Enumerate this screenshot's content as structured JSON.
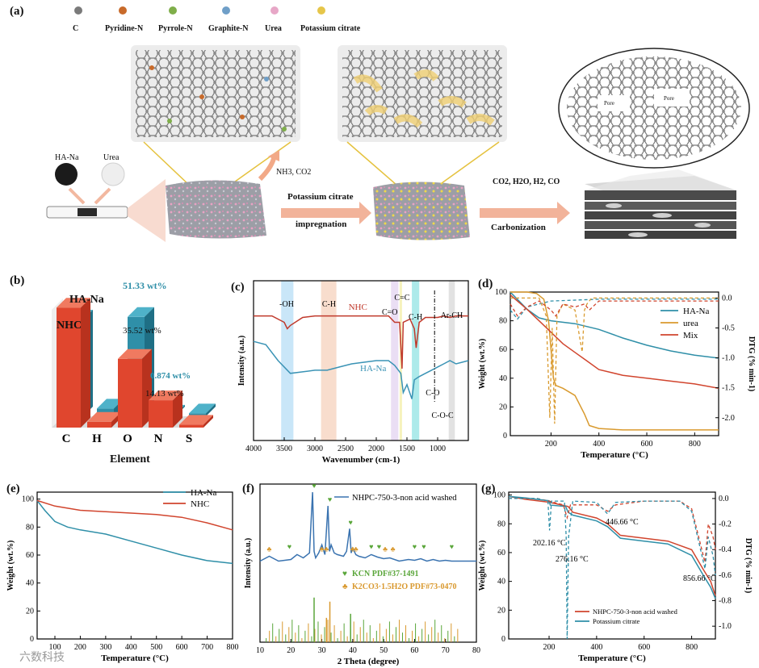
{
  "panel_a": {
    "label": "(a)",
    "legend": [
      {
        "name": "C",
        "color": "#707070"
      },
      {
        "name": "Pyridine-N",
        "color": "#c86a2a"
      },
      {
        "name": "Pyrrole-N",
        "color": "#7fae4a"
      },
      {
        "name": "Graphite-N",
        "color": "#6f9fc8"
      },
      {
        "name": "Urea",
        "color": "#e7a7c7"
      },
      {
        "name": "Potassium citrate",
        "color": "#e6c64a"
      }
    ],
    "haNa": "HA-Na",
    "urea": "Urea",
    "gas1": "NH3, CO2",
    "step1_line1": "Potassium citrate",
    "step1_line2": "impregnation",
    "gas2": "CO2, H2O, H2, CO",
    "step2": "Carbonization",
    "pore1": "Pore",
    "pore2": "Pore"
  },
  "panel_b": {
    "label": "(b)",
    "xlabel": "Element",
    "series_haNa": "HA-Na",
    "series_nhc": "NHC",
    "annot_o_hana": "51.33 wt%",
    "annot_o_nhc": "35.52 wt%",
    "annot_n_hana": "0.874 wt%",
    "annot_n_nhc": "14.13 wt%"
  },
  "panel_c": {
    "label": "(c)"
  },
  "panel_d": {
    "label": "(d)"
  },
  "panel_e": {
    "label": "(e)"
  },
  "panel_f": {
    "label": "(f)"
  },
  "panel_g": {
    "label": "(g)"
  },
  "watermark": "六数科技",
  "chart_data": [
    {
      "id": "b",
      "type": "bar",
      "title": "",
      "xlabel": "Element",
      "ylabel": "",
      "categories": [
        "C",
        "H",
        "O",
        "N",
        "S"
      ],
      "series": [
        {
          "name": "NHC",
          "color": "#e0462e",
          "values": [
            62,
            3,
            35.52,
            14.13,
            1.5
          ]
        },
        {
          "name": "HA-Na",
          "color": "#2f8fa8",
          "values": [
            50,
            4,
            51.33,
            0.874,
            1.5
          ]
        }
      ]
    },
    {
      "id": "c",
      "type": "line",
      "xlabel": "Wavenumber (cm-1)",
      "ylabel": "Intensity (a.u.)",
      "xlim": [
        4000,
        500
      ],
      "xticks": [
        4000,
        3500,
        3000,
        2500,
        2000,
        1500,
        1000
      ],
      "bands": [
        {
          "label": "-OH",
          "range": [
            3550,
            3350
          ],
          "color": "#bfe2f7"
        },
        {
          "label": "C-H",
          "range": [
            2900,
            2650
          ],
          "color": "#f7d7c4"
        },
        {
          "label": "C=O",
          "range": [
            1760,
            1640
          ],
          "color": "#e6d8f2"
        },
        {
          "label": "C=C",
          "range": [
            1620,
            1580
          ],
          "color": "#f5f0b0"
        },
        {
          "label": "C-H",
          "range": [
            1420,
            1300
          ],
          "color": "#9fe6e6"
        },
        {
          "label": "Ar-CH",
          "range": [
            820,
            720
          ],
          "color": "#dddddd"
        }
      ],
      "annotations": [
        "C-O",
        "C-O-C"
      ],
      "series": [
        {
          "name": "NHC",
          "color": "#c0392b",
          "x": [
            4000,
            3700,
            3500,
            3450,
            3400,
            3200,
            3000,
            2800,
            2400,
            2000,
            1800,
            1700,
            1620,
            1580,
            1560,
            1450,
            1380,
            1350,
            1300,
            1200,
            1100,
            1000,
            900,
            800,
            700,
            500
          ],
          "y": [
            0.78,
            0.78,
            0.74,
            0.7,
            0.72,
            0.77,
            0.78,
            0.78,
            0.78,
            0.78,
            0.78,
            0.74,
            0.74,
            0.45,
            0.74,
            0.76,
            0.7,
            0.58,
            0.74,
            0.77,
            0.77,
            0.77,
            0.78,
            0.77,
            0.78,
            0.78
          ]
        },
        {
          "name": "HA-Na",
          "color": "#3a93b5",
          "x": [
            4000,
            3800,
            3600,
            3400,
            3200,
            3000,
            2800,
            2600,
            2400,
            2200,
            2000,
            1800,
            1700,
            1600,
            1560,
            1500,
            1420,
            1380,
            1300,
            1200,
            1100,
            1000,
            900,
            800,
            700,
            500
          ],
          "y": [
            0.62,
            0.6,
            0.5,
            0.42,
            0.43,
            0.44,
            0.44,
            0.46,
            0.48,
            0.49,
            0.5,
            0.5,
            0.47,
            0.42,
            0.3,
            0.35,
            0.26,
            0.38,
            0.4,
            0.42,
            0.44,
            0.46,
            0.48,
            0.5,
            0.48,
            0.5
          ]
        }
      ]
    },
    {
      "id": "d",
      "type": "line",
      "xlabel": "Temperature (°C)",
      "ylabel": "Weight (wt.%)",
      "y2label": "DTG (% min-1)",
      "xlim": [
        30,
        900
      ],
      "ylim": [
        0,
        100
      ],
      "y2lim": [
        -2.3,
        0.1
      ],
      "xticks": [
        200,
        400,
        600,
        800
      ],
      "yticks": [
        0,
        20,
        40,
        60,
        80,
        100
      ],
      "y2ticks": [
        0.0,
        -0.5,
        -1.0,
        -1.5,
        -2.0
      ],
      "series": [
        {
          "name": "HA-Na",
          "color": "#2f8fa8",
          "x": [
            30,
            100,
            150,
            200,
            300,
            400,
            500,
            600,
            700,
            800,
            900
          ],
          "y": [
            100,
            88,
            82,
            80,
            78,
            74,
            68,
            63,
            59,
            56,
            54
          ]
        },
        {
          "name": "urea",
          "color": "#d99a2e",
          "x": [
            30,
            100,
            140,
            170,
            190,
            200,
            210,
            220,
            250,
            300,
            340,
            360,
            400,
            500,
            900
          ],
          "y": [
            100,
            100,
            99,
            95,
            80,
            60,
            40,
            35,
            33,
            28,
            15,
            7,
            5,
            4,
            4
          ]
        },
        {
          "name": "Mix",
          "color": "#d1452e",
          "x": [
            30,
            100,
            150,
            200,
            250,
            300,
            350,
            400,
            500,
            600,
            700,
            800,
            900
          ],
          "y": [
            98,
            88,
            80,
            72,
            64,
            58,
            52,
            46,
            42,
            40,
            38,
            36,
            33
          ]
        }
      ],
      "dtg_series": [
        {
          "name": "HA-Na DTG",
          "color": "#2f8fa8",
          "x": [
            30,
            60,
            100,
            200,
            400,
            900
          ],
          "y": [
            -0.2,
            -0.35,
            -0.15,
            -0.05,
            -0.02,
            -0.02
          ]
        },
        {
          "name": "urea DTG",
          "color": "#d99a2e",
          "x": [
            30,
            150,
            180,
            195,
            205,
            215,
            225,
            250,
            300,
            330,
            340,
            350,
            370,
            400,
            900
          ],
          "y": [
            0,
            0,
            -0.3,
            -2.0,
            -0.5,
            -2.1,
            -0.3,
            -0.1,
            -0.2,
            -0.9,
            -0.2,
            -0.1,
            0,
            0,
            0
          ]
        },
        {
          "name": "Mix DTG",
          "color": "#d1452e",
          "x": [
            30,
            60,
            100,
            150,
            200,
            220,
            250,
            300,
            340,
            360,
            400,
            900
          ],
          "y": [
            -0.1,
            -0.3,
            -0.15,
            -0.05,
            -0.2,
            -0.3,
            -0.1,
            -0.15,
            -0.1,
            -0.2,
            -0.05,
            -0.05
          ]
        }
      ]
    },
    {
      "id": "e",
      "type": "line",
      "xlabel": "Temperature (°C)",
      "ylabel": "Weight (wt.%)",
      "xlim": [
        30,
        800
      ],
      "ylim": [
        0,
        105
      ],
      "xticks": [
        100,
        200,
        300,
        400,
        500,
        600,
        700,
        800
      ],
      "yticks": [
        0,
        20,
        40,
        60,
        80,
        100
      ],
      "series": [
        {
          "name": "HA-Na",
          "color": "#2f8fa8",
          "x": [
            30,
            60,
            100,
            150,
            200,
            300,
            400,
            500,
            600,
            700,
            800
          ],
          "y": [
            99,
            92,
            84,
            80,
            78,
            75,
            70,
            65,
            60,
            56,
            54
          ]
        },
        {
          "name": "NHC",
          "color": "#d1452e",
          "x": [
            30,
            100,
            200,
            300,
            400,
            500,
            600,
            700,
            800
          ],
          "y": [
            99,
            95,
            92,
            91,
            90,
            89,
            87,
            83,
            78
          ]
        }
      ]
    },
    {
      "id": "f",
      "type": "line",
      "xlabel": "2 Theta (degree)",
      "ylabel": "Intensity (a.u.)",
      "xlim": [
        10,
        80
      ],
      "xticks": [
        10,
        20,
        30,
        40,
        50,
        60,
        70,
        80
      ],
      "series": [
        {
          "name": "NHPC-750-3-non acid washed",
          "color": "#3a73b0",
          "x": [
            10,
            13,
            16,
            20,
            22,
            24,
            26,
            27,
            27.5,
            28,
            29,
            30,
            31,
            32,
            32.5,
            33,
            34,
            35,
            37,
            38,
            39,
            39.5,
            40,
            41,
            42,
            44,
            46,
            48,
            50,
            52,
            55,
            58,
            60,
            62,
            64,
            66,
            68,
            70,
            72,
            75,
            80
          ],
          "y": [
            0.1,
            0.16,
            0.1,
            0.12,
            0.18,
            0.14,
            0.2,
            0.95,
            0.22,
            0.14,
            0.2,
            0.3,
            0.18,
            0.78,
            0.22,
            0.3,
            0.2,
            0.18,
            0.16,
            0.22,
            0.5,
            0.2,
            0.26,
            0.18,
            0.16,
            0.14,
            0.18,
            0.15,
            0.13,
            0.14,
            0.1,
            0.12,
            0.11,
            0.13,
            0.1,
            0.12,
            0.1,
            0.11,
            0.1,
            0.1,
            0.1
          ]
        },
        {
          "name": "KCN PDF#37-1491",
          "color": "#5aa63a",
          "marker": "♥",
          "peaks_x": [
            19.5,
            27.5,
            32.6,
            39.3,
            46,
            48.5,
            60,
            63,
            72
          ]
        },
        {
          "name": "K2CO3·1.5H2O PDF#73-0470",
          "color": "#d9992f",
          "marker": "♣",
          "peaks_x": [
            13,
            30,
            31.5,
            40,
            41,
            50.5,
            53
          ]
        }
      ]
    },
    {
      "id": "g",
      "type": "line",
      "xlabel": "Temperature (°C)",
      "ylabel": "Weight (wt.%)",
      "y2label": "DTG (% min-1)",
      "xlim": [
        30,
        900
      ],
      "ylim": [
        0,
        102
      ],
      "y2lim": [
        -1.1,
        0.05
      ],
      "xticks": [
        200,
        400,
        600,
        800
      ],
      "yticks": [
        0,
        20,
        40,
        60,
        80,
        100
      ],
      "y2ticks": [
        0.0,
        -0.2,
        -0.4,
        -0.6,
        -0.8,
        -1.0
      ],
      "annotations": [
        "202.16 °C",
        "276.16 °C",
        "446.66 °C",
        "856.66 °C"
      ],
      "series": [
        {
          "name": "NHPC-750-3-non acid washed",
          "color": "#d1452e",
          "x": [
            30,
            100,
            200,
            280,
            300,
            400,
            446,
            500,
            600,
            700,
            800,
            850,
            880,
            900
          ],
          "y": [
            99,
            97,
            95,
            92,
            88,
            84,
            80,
            72,
            70,
            68,
            62,
            48,
            40,
            30
          ]
        },
        {
          "name": "Potassium citrate",
          "color": "#2f8fa8",
          "x": [
            30,
            100,
            200,
            205,
            270,
            280,
            300,
            400,
            446,
            500,
            600,
            700,
            800,
            850,
            880,
            900
          ],
          "y": [
            99,
            98,
            96,
            93,
            92,
            88,
            86,
            82,
            78,
            70,
            68,
            66,
            58,
            44,
            36,
            28
          ]
        }
      ],
      "dtg_series": [
        {
          "name": "NHPC DTG",
          "color": "#d1452e",
          "x": [
            30,
            150,
            200,
            260,
            276,
            290,
            400,
            446,
            480,
            600,
            750,
            800,
            856,
            870,
            890,
            900
          ],
          "y": [
            0,
            0,
            -0.02,
            -0.05,
            -0.15,
            -0.05,
            -0.05,
            -0.1,
            -0.05,
            -0.02,
            -0.02,
            -0.08,
            -0.5,
            -0.2,
            -0.3,
            -0.4
          ]
        },
        {
          "name": "Potassium citrate DTG",
          "color": "#2f8fa8",
          "x": [
            30,
            150,
            195,
            202,
            210,
            265,
            272,
            276,
            282,
            300,
            400,
            446,
            480,
            600,
            750,
            800,
            856,
            870,
            890,
            900
          ],
          "y": [
            0,
            0,
            -0.02,
            -0.25,
            -0.02,
            -0.02,
            -0.3,
            -1.1,
            -0.3,
            -0.02,
            -0.03,
            -0.12,
            -0.03,
            -0.02,
            -0.02,
            -0.1,
            -0.55,
            -0.3,
            -0.45,
            -0.6
          ]
        }
      ]
    }
  ]
}
